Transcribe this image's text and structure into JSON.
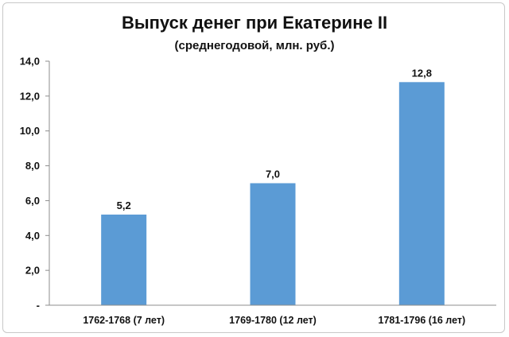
{
  "chart_data": {
    "type": "bar",
    "title": "Выпуск денег при Екатерине II",
    "subtitle": "(среднегодовой, млн. руб.)",
    "categories": [
      "1762-1768 (7 лет)",
      "1769-1780 (12 лет)",
      "1781-1796 (16 лет)"
    ],
    "values": [
      5.2,
      7.0,
      12.8
    ],
    "data_labels": [
      "5,2",
      "7,0",
      "12,8"
    ],
    "ylim": [
      0,
      14
    ],
    "y_ticks": [
      0,
      2,
      4,
      6,
      8,
      10,
      12,
      14
    ],
    "y_tick_labels": [
      "-",
      "2,0",
      "4,0",
      "6,0",
      "8,0",
      "10,0",
      "12,0",
      "14,0"
    ],
    "grid": false,
    "legend": "none",
    "bar_color": "#5b9bd5"
  }
}
